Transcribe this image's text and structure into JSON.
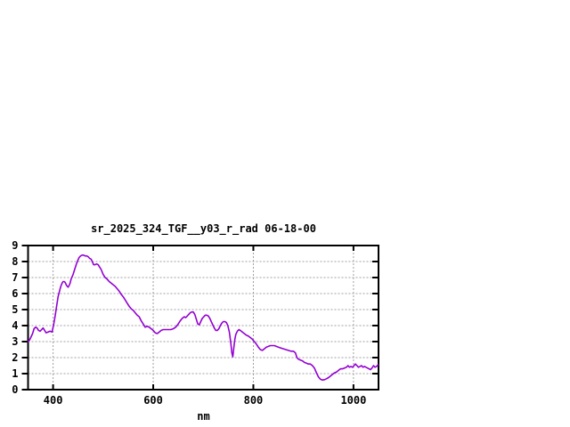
{
  "chart": {
    "title": "sr_2025_324_TGF__y03_r_rad 06-18-00",
    "xlabel": "nm",
    "colors": {
      "line": "#9400d3",
      "grid": "#a0a0a0",
      "axis": "#000000",
      "background": "#ffffff"
    }
  },
  "chart_data": {
    "type": "line",
    "title": "sr_2025_324_TGF__y03_r_rad 06-18-00",
    "xlabel": "nm",
    "ylabel": "",
    "xlim": [
      350,
      1050
    ],
    "ylim": [
      0,
      9
    ],
    "x_ticks": [
      400,
      600,
      800,
      1000
    ],
    "y_ticks": [
      0,
      1,
      2,
      3,
      4,
      5,
      6,
      7,
      8,
      9
    ],
    "grid": true,
    "legend": false,
    "series_color": "#9400d3",
    "points": [
      [
        350,
        3.0
      ],
      [
        353,
        3.1
      ],
      [
        356,
        3.3
      ],
      [
        359,
        3.5
      ],
      [
        362,
        3.8
      ],
      [
        365,
        3.9
      ],
      [
        368,
        3.85
      ],
      [
        371,
        3.7
      ],
      [
        374,
        3.65
      ],
      [
        377,
        3.75
      ],
      [
        380,
        3.85
      ],
      [
        383,
        3.7
      ],
      [
        386,
        3.55
      ],
      [
        390,
        3.6
      ],
      [
        394,
        3.65
      ],
      [
        398,
        3.6
      ],
      [
        400,
        3.9
      ],
      [
        402,
        4.2
      ],
      [
        404,
        4.6
      ],
      [
        406,
        5.0
      ],
      [
        408,
        5.4
      ],
      [
        410,
        5.8
      ],
      [
        412,
        6.05
      ],
      [
        414,
        6.3
      ],
      [
        416,
        6.5
      ],
      [
        418,
        6.65
      ],
      [
        420,
        6.75
      ],
      [
        422,
        6.75
      ],
      [
        424,
        6.7
      ],
      [
        427,
        6.5
      ],
      [
        430,
        6.4
      ],
      [
        432,
        6.5
      ],
      [
        434,
        6.65
      ],
      [
        436,
        6.9
      ],
      [
        438,
        7.05
      ],
      [
        440,
        7.2
      ],
      [
        443,
        7.5
      ],
      [
        446,
        7.8
      ],
      [
        449,
        8.05
      ],
      [
        452,
        8.25
      ],
      [
        455,
        8.35
      ],
      [
        458,
        8.4
      ],
      [
        461,
        8.4
      ],
      [
        464,
        8.35
      ],
      [
        467,
        8.35
      ],
      [
        470,
        8.3
      ],
      [
        473,
        8.2
      ],
      [
        476,
        8.15
      ],
      [
        479,
        7.95
      ],
      [
        481,
        7.8
      ],
      [
        484,
        7.8
      ],
      [
        487,
        7.85
      ],
      [
        490,
        7.8
      ],
      [
        493,
        7.65
      ],
      [
        496,
        7.5
      ],
      [
        500,
        7.2
      ],
      [
        504,
        7.0
      ],
      [
        508,
        6.9
      ],
      [
        512,
        6.75
      ],
      [
        516,
        6.65
      ],
      [
        520,
        6.55
      ],
      [
        524,
        6.45
      ],
      [
        528,
        6.3
      ],
      [
        532,
        6.15
      ],
      [
        536,
        5.95
      ],
      [
        540,
        5.8
      ],
      [
        544,
        5.6
      ],
      [
        548,
        5.4
      ],
      [
        552,
        5.2
      ],
      [
        556,
        5.05
      ],
      [
        560,
        4.95
      ],
      [
        564,
        4.8
      ],
      [
        568,
        4.65
      ],
      [
        572,
        4.55
      ],
      [
        576,
        4.3
      ],
      [
        580,
        4.1
      ],
      [
        584,
        3.9
      ],
      [
        588,
        3.95
      ],
      [
        592,
        3.9
      ],
      [
        596,
        3.8
      ],
      [
        600,
        3.7
      ],
      [
        604,
        3.55
      ],
      [
        608,
        3.5
      ],
      [
        612,
        3.6
      ],
      [
        616,
        3.7
      ],
      [
        620,
        3.75
      ],
      [
        625,
        3.75
      ],
      [
        630,
        3.75
      ],
      [
        635,
        3.75
      ],
      [
        640,
        3.8
      ],
      [
        645,
        3.9
      ],
      [
        650,
        4.1
      ],
      [
        654,
        4.3
      ],
      [
        658,
        4.45
      ],
      [
        662,
        4.55
      ],
      [
        665,
        4.5
      ],
      [
        668,
        4.6
      ],
      [
        671,
        4.7
      ],
      [
        674,
        4.8
      ],
      [
        677,
        4.85
      ],
      [
        680,
        4.85
      ],
      [
        683,
        4.7
      ],
      [
        686,
        4.4
      ],
      [
        689,
        4.1
      ],
      [
        692,
        4.05
      ],
      [
        695,
        4.25
      ],
      [
        698,
        4.45
      ],
      [
        701,
        4.55
      ],
      [
        704,
        4.65
      ],
      [
        707,
        4.65
      ],
      [
        710,
        4.6
      ],
      [
        713,
        4.45
      ],
      [
        716,
        4.25
      ],
      [
        719,
        4.05
      ],
      [
        722,
        3.85
      ],
      [
        725,
        3.7
      ],
      [
        728,
        3.7
      ],
      [
        731,
        3.8
      ],
      [
        734,
        4.0
      ],
      [
        737,
        4.15
      ],
      [
        740,
        4.25
      ],
      [
        743,
        4.25
      ],
      [
        746,
        4.2
      ],
      [
        749,
        4.0
      ],
      [
        752,
        3.6
      ],
      [
        755,
        2.9
      ],
      [
        757,
        2.3
      ],
      [
        759,
        2.05
      ],
      [
        761,
        2.6
      ],
      [
        763,
        3.15
      ],
      [
        765,
        3.45
      ],
      [
        768,
        3.65
      ],
      [
        771,
        3.75
      ],
      [
        774,
        3.7
      ],
      [
        778,
        3.6
      ],
      [
        782,
        3.5
      ],
      [
        786,
        3.4
      ],
      [
        790,
        3.35
      ],
      [
        794,
        3.25
      ],
      [
        798,
        3.15
      ],
      [
        802,
        3.0
      ],
      [
        806,
        2.85
      ],
      [
        810,
        2.65
      ],
      [
        814,
        2.5
      ],
      [
        818,
        2.45
      ],
      [
        822,
        2.55
      ],
      [
        826,
        2.65
      ],
      [
        830,
        2.7
      ],
      [
        834,
        2.75
      ],
      [
        838,
        2.75
      ],
      [
        842,
        2.75
      ],
      [
        846,
        2.7
      ],
      [
        850,
        2.65
      ],
      [
        855,
        2.6
      ],
      [
        860,
        2.55
      ],
      [
        865,
        2.5
      ],
      [
        870,
        2.45
      ],
      [
        875,
        2.4
      ],
      [
        880,
        2.4
      ],
      [
        884,
        2.3
      ],
      [
        887,
        2.0
      ],
      [
        890,
        1.9
      ],
      [
        894,
        1.85
      ],
      [
        898,
        1.8
      ],
      [
        902,
        1.7
      ],
      [
        906,
        1.65
      ],
      [
        910,
        1.6
      ],
      [
        914,
        1.6
      ],
      [
        918,
        1.5
      ],
      [
        922,
        1.35
      ],
      [
        926,
        1.05
      ],
      [
        930,
        0.8
      ],
      [
        934,
        0.65
      ],
      [
        938,
        0.6
      ],
      [
        942,
        0.62
      ],
      [
        946,
        0.68
      ],
      [
        950,
        0.75
      ],
      [
        954,
        0.85
      ],
      [
        958,
        0.95
      ],
      [
        962,
        1.05
      ],
      [
        966,
        1.1
      ],
      [
        970,
        1.2
      ],
      [
        974,
        1.3
      ],
      [
        978,
        1.3
      ],
      [
        982,
        1.35
      ],
      [
        986,
        1.4
      ],
      [
        989,
        1.5
      ],
      [
        992,
        1.4
      ],
      [
        995,
        1.45
      ],
      [
        998,
        1.4
      ],
      [
        1001,
        1.5
      ],
      [
        1004,
        1.6
      ],
      [
        1007,
        1.5
      ],
      [
        1010,
        1.4
      ],
      [
        1013,
        1.45
      ],
      [
        1016,
        1.5
      ],
      [
        1019,
        1.4
      ],
      [
        1022,
        1.45
      ],
      [
        1025,
        1.4
      ],
      [
        1028,
        1.35
      ],
      [
        1031,
        1.3
      ],
      [
        1034,
        1.25
      ],
      [
        1037,
        1.35
      ],
      [
        1040,
        1.5
      ],
      [
        1043,
        1.4
      ],
      [
        1046,
        1.45
      ],
      [
        1049,
        1.55
      ]
    ]
  }
}
